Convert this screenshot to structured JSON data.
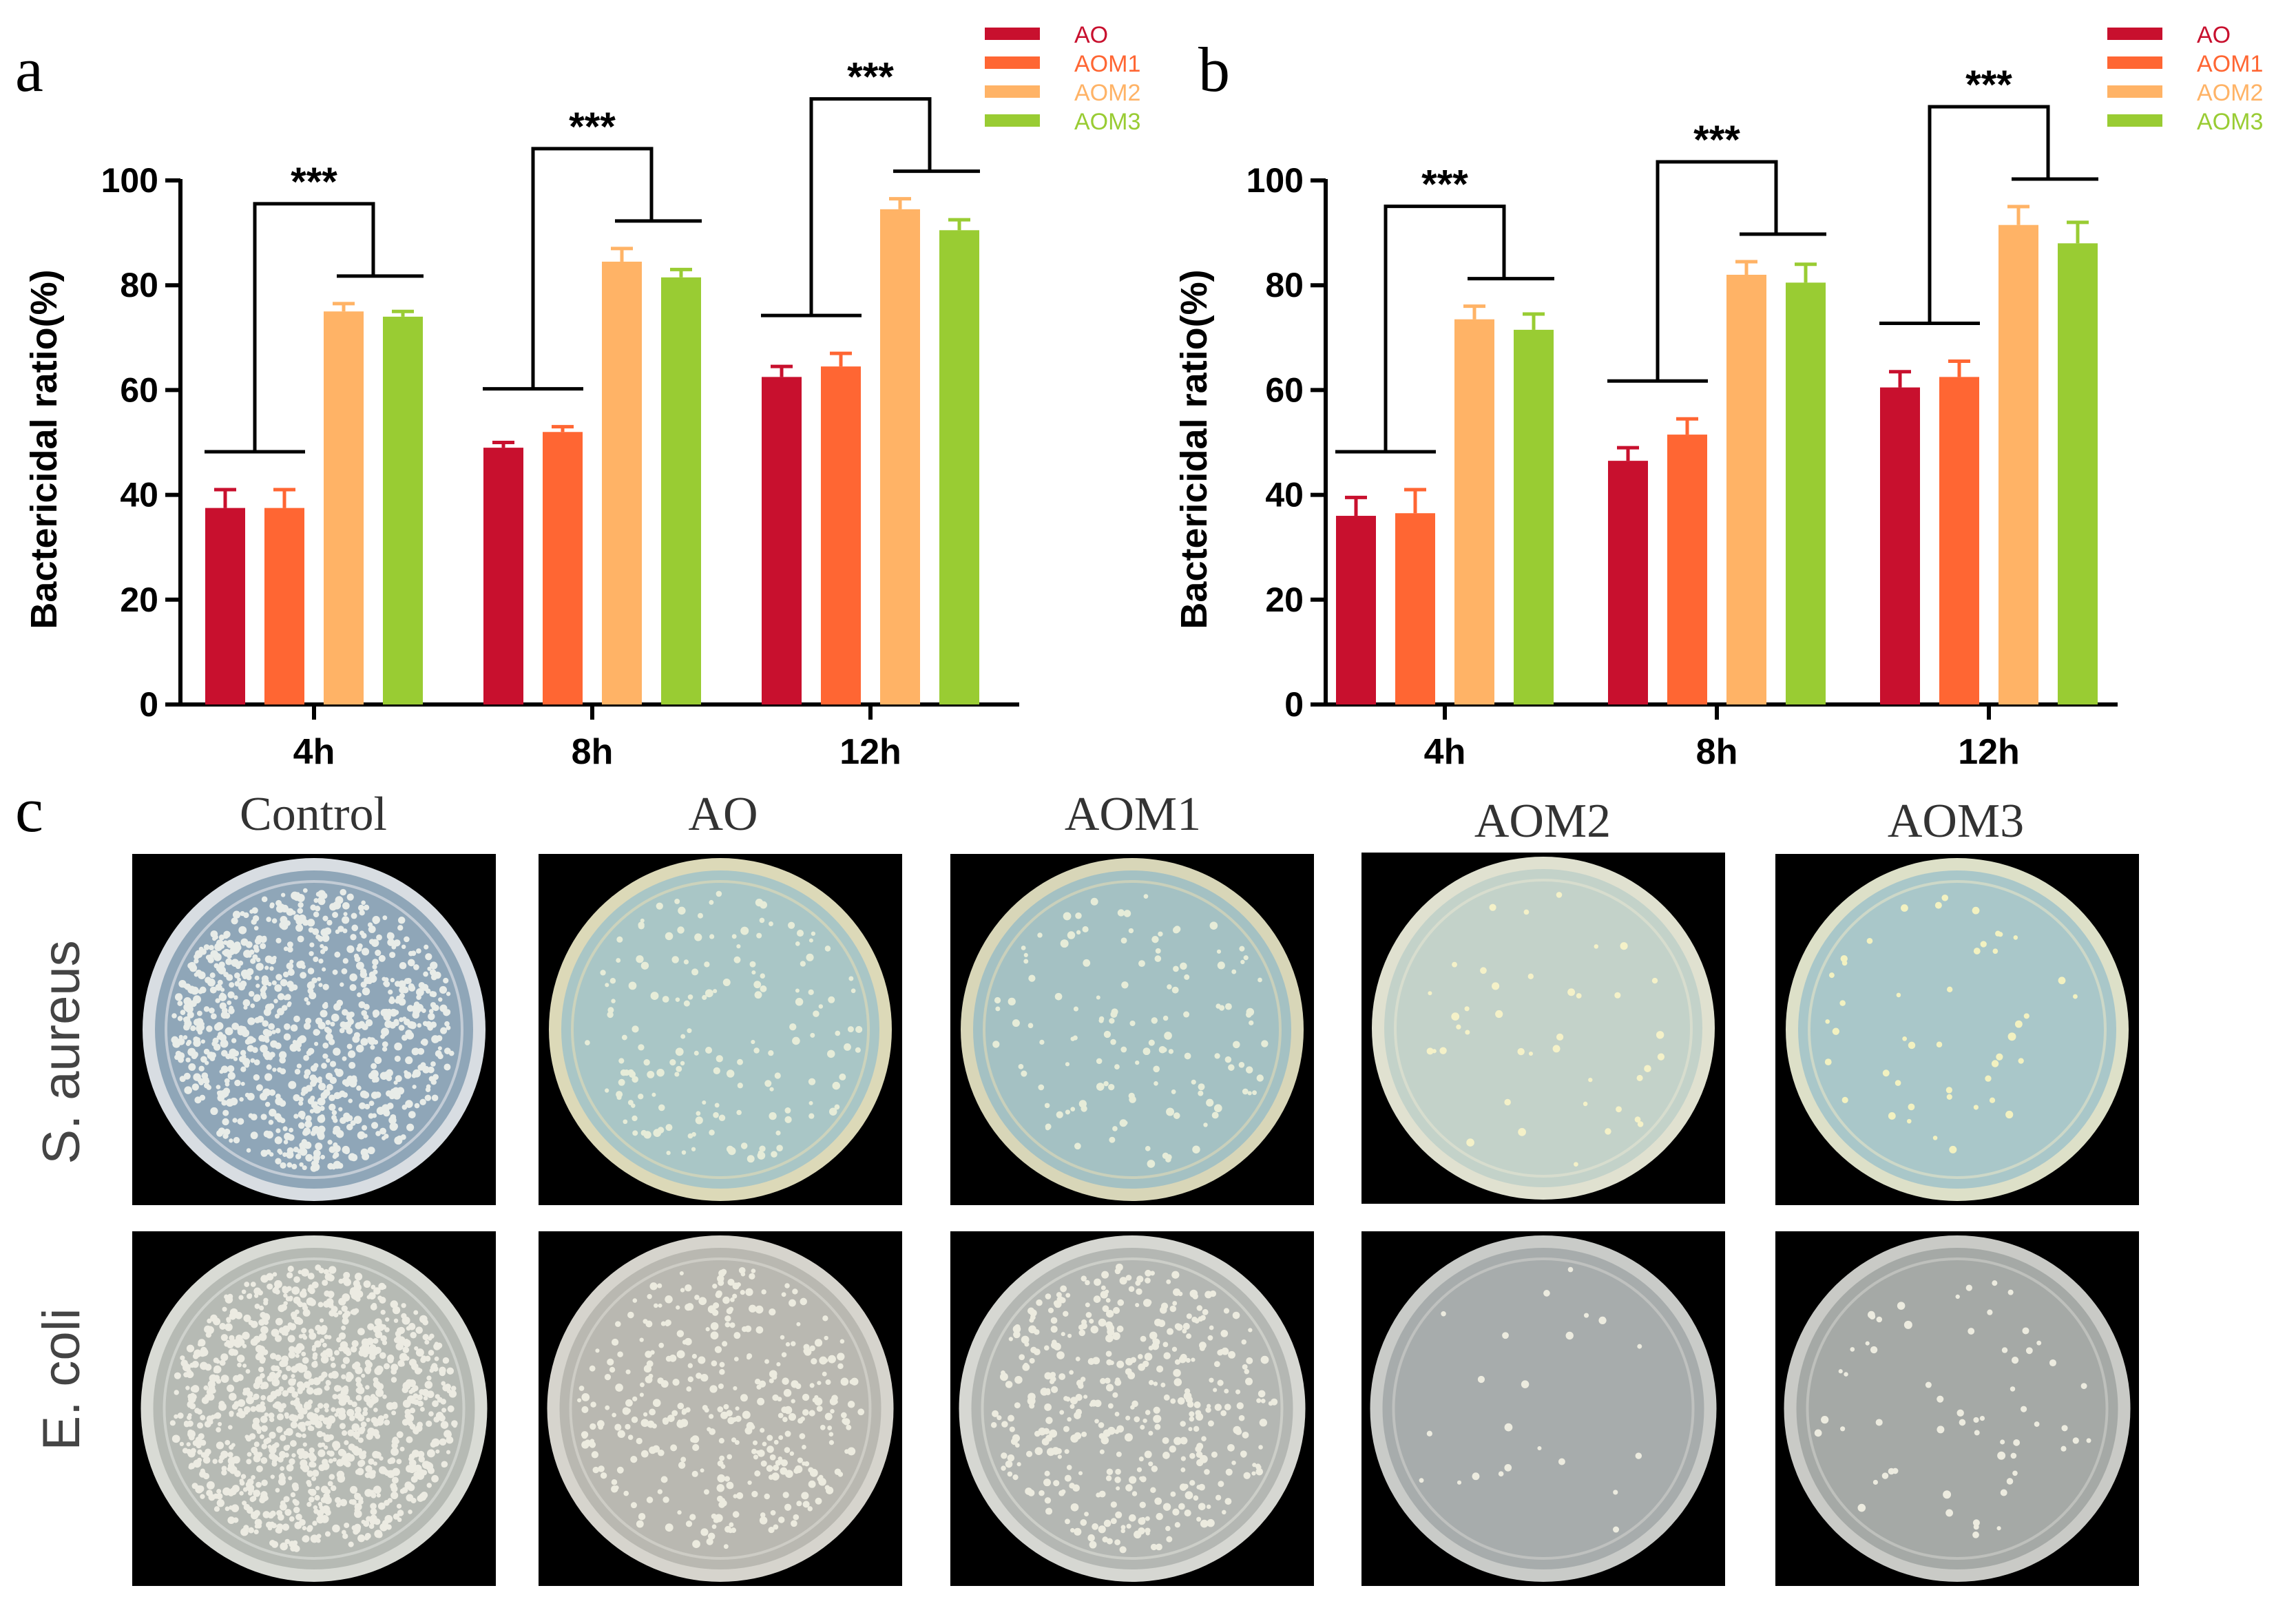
{
  "panels": {
    "a": "a",
    "b": "b",
    "c": "c"
  },
  "colors": {
    "AO": "#c8102e",
    "AOM1": "#ff6633",
    "AOM2": "#ffb366",
    "AOM3": "#99cc33"
  },
  "chart_data": [
    {
      "type": "bar",
      "categories": [
        "4h",
        "8h",
        "12h"
      ],
      "series": [
        {
          "name": "AO",
          "values": [
            37.5,
            49,
            62.5
          ],
          "errors": [
            3.5,
            1,
            2
          ]
        },
        {
          "name": "AOM1",
          "values": [
            37.5,
            52,
            64.5
          ],
          "errors": [
            3.5,
            1,
            2.5
          ]
        },
        {
          "name": "AOM2",
          "values": [
            75,
            84.5,
            94.5
          ],
          "errors": [
            1.5,
            2.5,
            2
          ]
        },
        {
          "name": "AOM3",
          "values": [
            74,
            81.5,
            90.5
          ],
          "errors": [
            1,
            1.5,
            2
          ]
        }
      ],
      "ylabel": "Bactericidal ratio(%)",
      "ylim": [
        0,
        100
      ],
      "yticks": [
        "0",
        "20",
        "40",
        "60",
        "80",
        "100"
      ],
      "significance": [
        "***",
        "***",
        "***"
      ],
      "legend": "top-right"
    },
    {
      "type": "bar",
      "categories": [
        "4h",
        "8h",
        "12h"
      ],
      "series": [
        {
          "name": "AO",
          "values": [
            36,
            46.5,
            60.5
          ],
          "errors": [
            3.5,
            2.5,
            3
          ]
        },
        {
          "name": "AOM1",
          "values": [
            36.5,
            51.5,
            62.5
          ],
          "errors": [
            4.5,
            3,
            3
          ]
        },
        {
          "name": "AOM2",
          "values": [
            73.5,
            82,
            91.5
          ],
          "errors": [
            2.5,
            2.5,
            3.5
          ]
        },
        {
          "name": "AOM3",
          "values": [
            71.5,
            80.5,
            88
          ],
          "errors": [
            3,
            3.5,
            4
          ]
        }
      ],
      "ylabel": "Bactericidal ratio(%)",
      "ylim": [
        0,
        100
      ],
      "yticks": [
        "0",
        "20",
        "40",
        "60",
        "80",
        "100"
      ],
      "significance": [
        "***",
        "***",
        "***"
      ],
      "legend": "top-right"
    }
  ],
  "plates": {
    "columns": [
      "Control",
      "AO",
      "AOM1",
      "AOM2",
      "AOM3"
    ],
    "rows": [
      "S. aureus",
      "E. coli"
    ]
  }
}
